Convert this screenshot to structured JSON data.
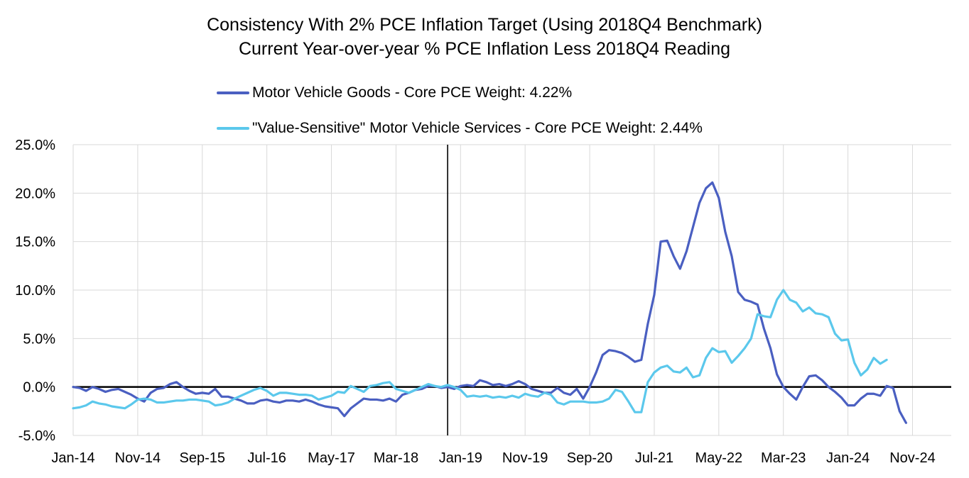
{
  "chart_data": {
    "type": "line",
    "title": [
      "Consistency With 2% PCE Inflation Target (Using 2018Q4 Benchmark)",
      "Current Year-over-year % PCE Inflation Less 2018Q4 Reading"
    ],
    "xlabel": "",
    "ylabel": "",
    "x_start": "Jan-14",
    "x_tick_labels": [
      "Jan-14",
      "Nov-14",
      "Sep-15",
      "Jul-16",
      "May-17",
      "Mar-18",
      "Jan-19",
      "Nov-19",
      "Sep-20",
      "Jul-21",
      "May-22",
      "Mar-23",
      "Jan-24",
      "Nov-24"
    ],
    "x_tick_months": [
      0,
      10,
      20,
      30,
      40,
      50,
      60,
      70,
      80,
      90,
      100,
      110,
      120,
      130
    ],
    "x_range_months": [
      0,
      136
    ],
    "ylim": [
      -5,
      25
    ],
    "y_ticks": [
      -5,
      0,
      5,
      10,
      15,
      20,
      25
    ],
    "y_tick_labels": [
      "-5.0%",
      "0.0%",
      "5.0%",
      "10.0%",
      "15.0%",
      "20.0%",
      "25.0%"
    ],
    "y_unit": "%",
    "grid": "horizontal",
    "benchmark_marker": {
      "month": 58,
      "label": "2018Q4"
    },
    "series": [
      {
        "name": "Motor Vehicle Goods - Core PCE Weight: 4.22%",
        "color": "#4a5fc1",
        "values": [
          0.0,
          -0.1,
          -0.4,
          0.0,
          -0.2,
          -0.5,
          -0.3,
          -0.2,
          -0.5,
          -0.8,
          -1.2,
          -1.5,
          -0.6,
          -0.2,
          -0.1,
          0.3,
          0.5,
          0.0,
          -0.4,
          -0.7,
          -0.6,
          -0.7,
          -0.2,
          -1.0,
          -1.0,
          -1.2,
          -1.4,
          -1.7,
          -1.7,
          -1.4,
          -1.3,
          -1.5,
          -1.6,
          -1.4,
          -1.4,
          -1.5,
          -1.3,
          -1.5,
          -1.8,
          -2.0,
          -2.1,
          -2.2,
          -3.0,
          -2.2,
          -1.7,
          -1.2,
          -1.3,
          -1.3,
          -1.4,
          -1.2,
          -1.5,
          -0.8,
          -0.6,
          -0.3,
          -0.2,
          0.1,
          0.1,
          -0.1,
          0.0,
          -0.2,
          0.1,
          0.2,
          0.1,
          0.7,
          0.5,
          0.2,
          0.3,
          0.1,
          0.3,
          0.6,
          0.3,
          -0.2,
          -0.4,
          -0.6,
          -0.6,
          -0.1,
          -0.6,
          -0.8,
          -0.2,
          -1.2,
          0.0,
          1.5,
          3.3,
          3.8,
          3.7,
          3.5,
          3.1,
          2.6,
          2.8,
          6.5,
          9.5,
          15.0,
          15.1,
          13.5,
          12.2,
          14.0,
          16.5,
          19.0,
          20.5,
          21.1,
          19.5,
          16.0,
          13.5,
          9.8,
          9.0,
          8.8,
          8.5,
          6.0,
          4.0,
          1.3,
          0.0,
          -0.7,
          -1.3,
          0.0,
          1.1,
          1.2,
          0.7,
          0.0,
          -0.5,
          -1.1,
          -1.9,
          -1.9,
          -1.2,
          -0.7,
          -0.7,
          -0.9,
          0.1,
          -0.1,
          -2.5,
          -3.7
        ]
      },
      {
        "name": "\"Value-Sensitive\" Motor Vehicle Services - Core PCE Weight: 2.44%",
        "color": "#5bc8ec",
        "values": [
          -2.2,
          -2.1,
          -1.9,
          -1.5,
          -1.7,
          -1.8,
          -2.0,
          -2.1,
          -2.2,
          -1.8,
          -1.3,
          -1.2,
          -1.3,
          -1.6,
          -1.6,
          -1.5,
          -1.4,
          -1.4,
          -1.3,
          -1.3,
          -1.4,
          -1.5,
          -1.9,
          -1.8,
          -1.6,
          -1.2,
          -0.9,
          -0.6,
          -0.3,
          -0.1,
          -0.4,
          -0.9,
          -0.6,
          -0.6,
          -0.7,
          -0.8,
          -0.8,
          -0.9,
          -1.3,
          -1.1,
          -0.9,
          -0.5,
          -0.6,
          0.1,
          -0.2,
          -0.5,
          0.1,
          0.2,
          0.4,
          0.5,
          -0.2,
          -0.4,
          -0.6,
          -0.3,
          0.0,
          0.3,
          0.1,
          0.0,
          0.2,
          0.0,
          -0.3,
          -1.0,
          -0.9,
          -1.0,
          -0.9,
          -1.1,
          -1.0,
          -1.1,
          -0.9,
          -1.1,
          -0.7,
          -0.9,
          -1.0,
          -0.6,
          -0.8,
          -1.6,
          -1.8,
          -1.5,
          -1.5,
          -1.5,
          -1.6,
          -1.6,
          -1.5,
          -1.2,
          -0.3,
          -0.5,
          -1.5,
          -2.6,
          -2.6,
          0.5,
          1.5,
          2.0,
          2.2,
          1.6,
          1.5,
          2.0,
          1.0,
          1.2,
          3.0,
          4.0,
          3.6,
          3.7,
          2.5,
          3.2,
          4.0,
          5.0,
          7.5,
          7.3,
          7.2,
          9.0,
          10.0,
          9.0,
          8.7,
          7.8,
          8.2,
          7.6,
          7.5,
          7.2,
          5.5,
          4.8,
          4.9,
          2.5,
          1.2,
          1.8,
          3.0,
          2.4,
          2.8
        ]
      }
    ]
  }
}
